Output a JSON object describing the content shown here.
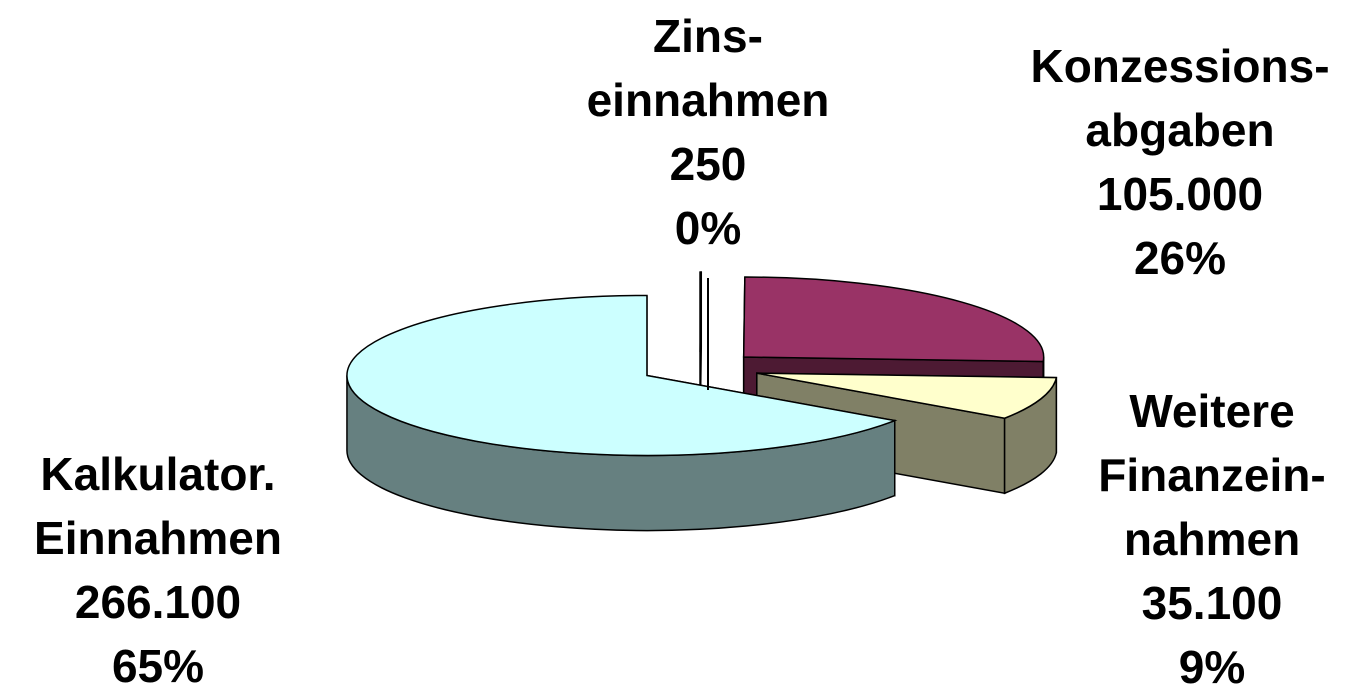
{
  "chart_data": {
    "type": "pie",
    "categories": [
      [
        "Zins-",
        "einnahmen"
      ],
      [
        "Konzessions-",
        "abgaben"
      ],
      [
        "Weitere",
        "Finanzein-",
        "nahmen"
      ],
      [
        "Kalkulator.",
        "Einnahmen"
      ]
    ],
    "values": [
      250,
      105000,
      35100,
      266100
    ],
    "value_labels": [
      "250",
      "105.000",
      "35.100",
      "266.100"
    ],
    "percent_labels": [
      "0%",
      "26%",
      "9%",
      "65%"
    ],
    "colors": [
      "#9999ff",
      "#993366",
      "#ffffcc",
      "#ccffff"
    ],
    "three_d": true,
    "exploded": true
  }
}
